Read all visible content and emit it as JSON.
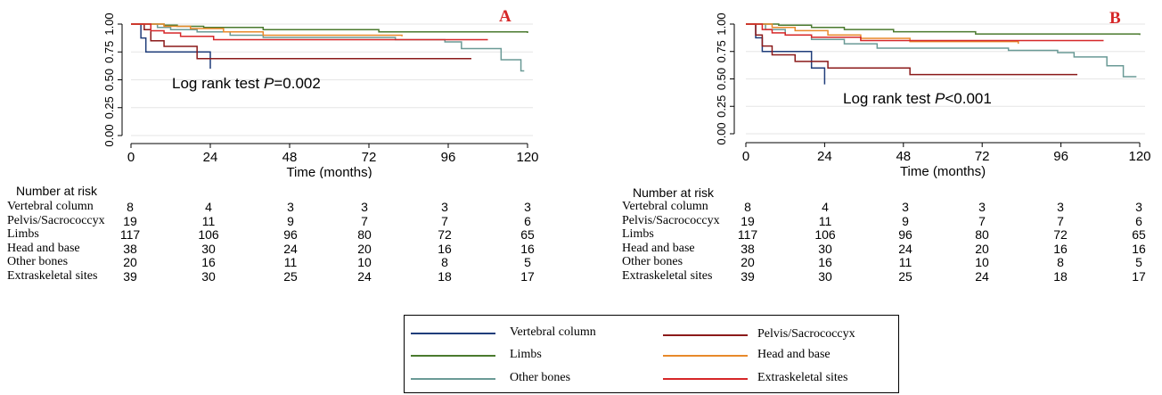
{
  "chart_data": [
    {
      "type": "line",
      "panel_label": "A",
      "annotation": "Log rank test",
      "annotation_p": "P",
      "annotation_value": "=0.002",
      "xlabel": "Time (months)",
      "ylabel": "",
      "x_ticks": [
        "0",
        "24",
        "48",
        "72",
        "96",
        "120"
      ],
      "y_ticks": [
        "0.00",
        "0.25",
        "0.50",
        "0.75",
        "1.00"
      ],
      "xlim": [
        0,
        120
      ],
      "ylim": [
        0,
        1
      ],
      "grid": true,
      "series": [
        {
          "name": "Vertebral column",
          "color": "#1f3d7a",
          "x": [
            0,
            3,
            4.5,
            6,
            24
          ],
          "y": [
            1,
            0.875,
            0.75,
            0.75,
            0.6
          ]
        },
        {
          "name": "Limbs",
          "color": "#4a7a2e",
          "x": [
            0,
            10,
            14,
            22,
            40,
            75,
            120
          ],
          "y": [
            1,
            0.99,
            0.98,
            0.97,
            0.95,
            0.93,
            0.92
          ]
        },
        {
          "name": "Other bones",
          "color": "#6a9a96",
          "x": [
            0,
            8,
            12,
            20,
            30,
            40,
            80,
            95,
            100,
            112,
            118,
            119
          ],
          "y": [
            1,
            0.97,
            0.95,
            0.93,
            0.9,
            0.88,
            0.86,
            0.84,
            0.78,
            0.68,
            0.58,
            0.58
          ]
        },
        {
          "name": "Pelvis/Sacrococcyx",
          "color": "#8b1a1a",
          "x": [
            0,
            4,
            6,
            10,
            20,
            103
          ],
          "y": [
            1,
            0.95,
            0.85,
            0.8,
            0.69,
            0.69
          ]
        },
        {
          "name": "Head and base",
          "color": "#e8892a",
          "x": [
            0,
            10,
            18,
            28,
            40,
            82
          ],
          "y": [
            1,
            0.98,
            0.96,
            0.93,
            0.9,
            0.89
          ]
        },
        {
          "name": "Extraskeletal sites",
          "color": "#d62728",
          "x": [
            0,
            6,
            10,
            15,
            25,
            108
          ],
          "y": [
            1,
            0.94,
            0.92,
            0.89,
            0.86,
            0.86
          ]
        }
      ],
      "risk_table": {
        "header": "Number at risk",
        "rows": [
          {
            "label": "Vertebral column",
            "values": [
              "8",
              "4",
              "3",
              "3",
              "3",
              "3"
            ]
          },
          {
            "label": "Pelvis/Sacrococcyx",
            "values": [
              "19",
              "11",
              "9",
              "7",
              "7",
              "6"
            ]
          },
          {
            "label": "Limbs",
            "values": [
              "117",
              "106",
              "96",
              "80",
              "72",
              "65"
            ]
          },
          {
            "label": "Head and base",
            "values": [
              "38",
              "30",
              "24",
              "20",
              "16",
              "16"
            ]
          },
          {
            "label": "Other bones",
            "values": [
              "20",
              "16",
              "11",
              "10",
              "8",
              "5"
            ]
          },
          {
            "label": "Extraskeletal sites",
            "values": [
              "39",
              "30",
              "25",
              "24",
              "18",
              "17"
            ]
          }
        ]
      }
    },
    {
      "type": "line",
      "panel_label": "B",
      "annotation": "Log rank test",
      "annotation_p": "P",
      "annotation_value": "<0.001",
      "xlabel": "Time (months)",
      "ylabel": "",
      "x_ticks": [
        "0",
        "24",
        "48",
        "72",
        "96",
        "120"
      ],
      "y_ticks": [
        "0.00",
        "0.25",
        "0.50",
        "0.75",
        "1.00"
      ],
      "xlim": [
        0,
        120
      ],
      "ylim": [
        0,
        1
      ],
      "grid": true,
      "series": [
        {
          "name": "Vertebral column",
          "color": "#1f3d7a",
          "x": [
            0,
            3,
            5,
            7,
            16,
            20,
            24
          ],
          "y": [
            1,
            0.875,
            0.75,
            0.75,
            0.75,
            0.6,
            0.45
          ]
        },
        {
          "name": "Limbs",
          "color": "#4a7a2e",
          "x": [
            0,
            10,
            20,
            30,
            45,
            70,
            120
          ],
          "y": [
            1,
            0.99,
            0.97,
            0.95,
            0.93,
            0.91,
            0.9
          ]
        },
        {
          "name": "Other bones",
          "color": "#6a9a96",
          "x": [
            0,
            6,
            12,
            20,
            30,
            40,
            80,
            95,
            100,
            110,
            115,
            119
          ],
          "y": [
            1,
            0.95,
            0.9,
            0.86,
            0.82,
            0.78,
            0.76,
            0.74,
            0.7,
            0.62,
            0.52,
            0.52
          ]
        },
        {
          "name": "Pelvis/Sacrococcyx",
          "color": "#8b1a1a",
          "x": [
            0,
            3,
            5,
            8,
            15,
            25,
            50,
            101
          ],
          "y": [
            1,
            0.9,
            0.8,
            0.72,
            0.66,
            0.6,
            0.54,
            0.54
          ]
        },
        {
          "name": "Head and base",
          "color": "#e8892a",
          "x": [
            0,
            8,
            15,
            25,
            35,
            50,
            83
          ],
          "y": [
            1,
            0.97,
            0.94,
            0.9,
            0.87,
            0.84,
            0.82
          ]
        },
        {
          "name": "Extraskeletal sites",
          "color": "#d62728",
          "x": [
            0,
            5,
            8,
            12,
            20,
            35,
            109
          ],
          "y": [
            1,
            0.95,
            0.92,
            0.9,
            0.88,
            0.85,
            0.85
          ]
        }
      ],
      "risk_table": {
        "header": "Number at risk",
        "rows": [
          {
            "label": "Vertebral column",
            "values": [
              "8",
              "4",
              "3",
              "3",
              "3",
              "3"
            ]
          },
          {
            "label": "Pelvis/Sacrococcyx",
            "values": [
              "19",
              "11",
              "9",
              "7",
              "7",
              "6"
            ]
          },
          {
            "label": "Limbs",
            "values": [
              "117",
              "106",
              "96",
              "80",
              "72",
              "65"
            ]
          },
          {
            "label": "Head and base",
            "values": [
              "38",
              "30",
              "24",
              "20",
              "16",
              "16"
            ]
          },
          {
            "label": "Other bones",
            "values": [
              "20",
              "16",
              "11",
              "10",
              "8",
              "5"
            ]
          },
          {
            "label": "Extraskeletal sites",
            "values": [
              "39",
              "30",
              "25",
              "24",
              "18",
              "17"
            ]
          }
        ]
      }
    }
  ],
  "legend": {
    "items": [
      {
        "label": "Vertebral column",
        "color": "#1f3d7a"
      },
      {
        "label": "Pelvis/Sacrococcyx",
        "color": "#8b1a1a"
      },
      {
        "label": "Limbs",
        "color": "#4a7a2e"
      },
      {
        "label": "Head and base",
        "color": "#e8892a"
      },
      {
        "label": "Other bones",
        "color": "#6a9a96"
      },
      {
        "label": "Extraskeletal sites",
        "color": "#d62728"
      }
    ]
  }
}
